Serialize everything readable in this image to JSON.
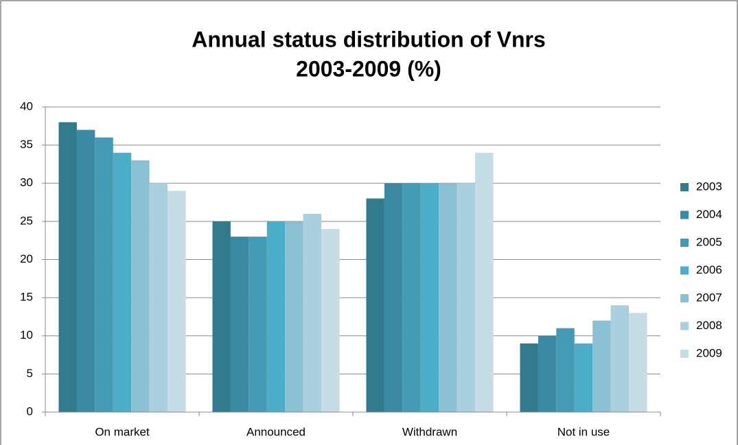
{
  "chart_data": {
    "type": "bar",
    "title": "Annual status distribution of Vnrs",
    "subtitle": "2003-2009 (%)",
    "categories": [
      "On market",
      "Announced",
      "Withdrawn",
      "Not in use"
    ],
    "series": [
      {
        "name": "2003",
        "color": "#317b8c",
        "values": [
          38,
          25,
          28,
          9
        ]
      },
      {
        "name": "2004",
        "color": "#3a8aa3",
        "values": [
          37,
          23,
          30,
          10
        ]
      },
      {
        "name": "2005",
        "color": "#439bb5",
        "values": [
          36,
          23,
          30,
          11
        ]
      },
      {
        "name": "2006",
        "color": "#4badc7",
        "values": [
          34,
          25,
          30,
          9
        ]
      },
      {
        "name": "2007",
        "color": "#8bc0d2",
        "values": [
          33,
          25,
          30,
          12
        ]
      },
      {
        "name": "2008",
        "color": "#aacfdd",
        "values": [
          30,
          26,
          30,
          14
        ]
      },
      {
        "name": "2009",
        "color": "#c5dde7",
        "values": [
          29,
          24,
          34,
          13
        ]
      }
    ],
    "ylim": [
      0,
      40
    ],
    "yticks": [
      0,
      5,
      10,
      15,
      20,
      25,
      30,
      35,
      40
    ],
    "grid": true,
    "legend": "right"
  }
}
